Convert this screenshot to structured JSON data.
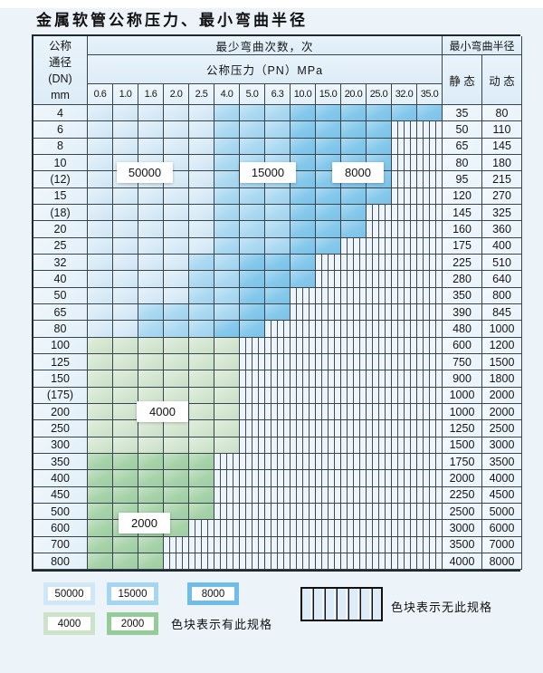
{
  "page_title": "金属软管公称压力、最小弯曲半径",
  "table": {
    "header": {
      "dn_label_lines": [
        "公称",
        "通径",
        "(DN)",
        "mm"
      ],
      "bend_cycles_label": "最少弯曲次数，次",
      "pressure_label": "公称压力（PN）MPa",
      "pressure_columns": [
        "0.6",
        "1.0",
        "1.6",
        "2.0",
        "2.5",
        "4.0",
        "5.0",
        "6.3",
        "10.0",
        "15.0",
        "20.0",
        "25.0",
        "32.0",
        "35.0"
      ],
      "radius_label": "最小弯曲半径",
      "static_label": "静 态",
      "dynamic_label": "动 态"
    },
    "code_map": {
      "a": "50000",
      "b": "15000",
      "c": "8000",
      "d": "4000",
      "e": "2000",
      "x": "none"
    },
    "zone_labels": [
      "50000",
      "15000",
      "8000",
      "4000",
      "2000"
    ],
    "rows": [
      {
        "dn": "4",
        "cells": "aaaaabbbcccccc",
        "static_radius": "35",
        "dynamic_radius": "80"
      },
      {
        "dn": "6",
        "cells": "aaaaabbbccccxx",
        "static_radius": "50",
        "dynamic_radius": "110"
      },
      {
        "dn": "8",
        "cells": "aaaaabbbccccxx",
        "static_radius": "65",
        "dynamic_radius": "145"
      },
      {
        "dn": "10",
        "cells": "aaaaabbbccccxx",
        "static_radius": "80",
        "dynamic_radius": "180"
      },
      {
        "dn": "(12)",
        "cells": "aaaaabbbccccxx",
        "static_radius": "95",
        "dynamic_radius": "215"
      },
      {
        "dn": "15",
        "cells": "aaaaabbbccccxx",
        "static_radius": "120",
        "dynamic_radius": "270"
      },
      {
        "dn": "(18)",
        "cells": "aaaaabbbcccxxx",
        "static_radius": "145",
        "dynamic_radius": "325"
      },
      {
        "dn": "20",
        "cells": "aaaaabbbcccxxx",
        "static_radius": "160",
        "dynamic_radius": "360"
      },
      {
        "dn": "25",
        "cells": "aaaaabbbccxxxx",
        "static_radius": "175",
        "dynamic_radius": "400"
      },
      {
        "dn": "32",
        "cells": "aaaabbcccxxxxx",
        "static_radius": "225",
        "dynamic_radius": "510"
      },
      {
        "dn": "40",
        "cells": "aaaabbcccxxxxx",
        "static_radius": "280",
        "dynamic_radius": "640"
      },
      {
        "dn": "50",
        "cells": "aaaabbccxxxxxx",
        "static_radius": "350",
        "dynamic_radius": "800"
      },
      {
        "dn": "65",
        "cells": "aabbbbccxxxxxx",
        "static_radius": "390",
        "dynamic_radius": "845"
      },
      {
        "dn": "80",
        "cells": "aabbbccxxxxxxx",
        "static_radius": "480",
        "dynamic_radius": "1000"
      },
      {
        "dn": "100",
        "cells": "ddddddxxxxxxxx",
        "static_radius": "600",
        "dynamic_radius": "1200"
      },
      {
        "dn": "125",
        "cells": "ddddddxxxxxxxx",
        "static_radius": "750",
        "dynamic_radius": "1500"
      },
      {
        "dn": "150",
        "cells": "ddddddxxxxxxxx",
        "static_radius": "900",
        "dynamic_radius": "1800"
      },
      {
        "dn": "(175)",
        "cells": "ddddddxxxxxxxx",
        "static_radius": "1000",
        "dynamic_radius": "2000"
      },
      {
        "dn": "200",
        "cells": "ddddddxxxxxxxx",
        "static_radius": "1000",
        "dynamic_radius": "2000"
      },
      {
        "dn": "250",
        "cells": "ddddddxxxxxxxx",
        "static_radius": "1250",
        "dynamic_radius": "2500"
      },
      {
        "dn": "300",
        "cells": "ddddddxxxxxxxx",
        "static_radius": "1500",
        "dynamic_radius": "3000"
      },
      {
        "dn": "350",
        "cells": "eeeeexxxxxxxxx",
        "static_radius": "1750",
        "dynamic_radius": "3500"
      },
      {
        "dn": "400",
        "cells": "eeeeexxxxxxxxx",
        "static_radius": "2000",
        "dynamic_radius": "4000"
      },
      {
        "dn": "450",
        "cells": "eeeeexxxxxxxxx",
        "static_radius": "2250",
        "dynamic_radius": "4500"
      },
      {
        "dn": "500",
        "cells": "eeeeexxxxxxxxx",
        "static_radius": "2500",
        "dynamic_radius": "5000"
      },
      {
        "dn": "600",
        "cells": "eeeexxxxxxxxxx",
        "static_radius": "3000",
        "dynamic_radius": "6000"
      },
      {
        "dn": "700",
        "cells": "eeexxxxxxxxxxx",
        "static_radius": "3500",
        "dynamic_radius": "7000"
      },
      {
        "dn": "800",
        "cells": "eeexxxxxxxxxxx",
        "static_radius": "4000",
        "dynamic_radius": "8000"
      }
    ]
  },
  "legend": {
    "has_spec_items": [
      {
        "label": "50000",
        "color": "#cfe7f6"
      },
      {
        "label": "15000",
        "color": "#a5d6f1"
      },
      {
        "label": "8000",
        "color": "#6fbde8"
      },
      {
        "label": "4000",
        "color": "#cde3c9"
      },
      {
        "label": "2000",
        "color": "#94cc99"
      }
    ],
    "has_spec_text": "色块表示有此规格",
    "no_spec_text": "色块表示无此规格"
  },
  "colors": {
    "spec_50000": "#d9ebf7",
    "spec_15000": "#abd9f2",
    "spec_8000": "#84c8ec",
    "spec_4000": "#d3e6cf",
    "spec_2000": "#a7d3a9",
    "no_spec_bg": "#eef5fb",
    "grid_line": "#38454c",
    "header_bg": "#e4f0f9",
    "page_bg": "#edf4f9"
  }
}
